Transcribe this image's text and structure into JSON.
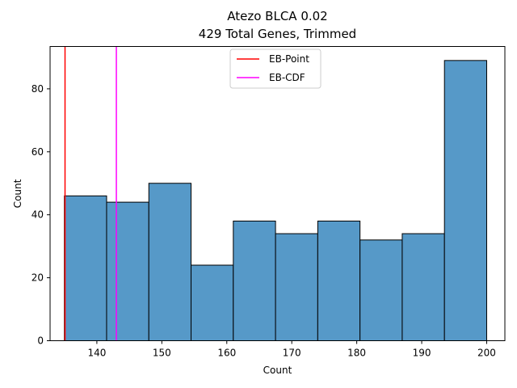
{
  "chart_data": {
    "type": "bar",
    "title": "Atezo BLCA 0.02",
    "subtitle": "429 Total Genes, Trimmed",
    "xlabel": "Count",
    "ylabel": "Count",
    "xlim": [
      132.8,
      202.8
    ],
    "ylim": [
      0,
      93.45
    ],
    "x_ticks": [
      140,
      150,
      160,
      170,
      180,
      190,
      200
    ],
    "y_ticks": [
      0,
      20,
      40,
      60,
      80
    ],
    "bins": [
      {
        "start": 135.0,
        "end": 141.5,
        "count": 46
      },
      {
        "start": 141.5,
        "end": 148.0,
        "count": 44
      },
      {
        "start": 148.0,
        "end": 154.5,
        "count": 50
      },
      {
        "start": 154.5,
        "end": 161.0,
        "count": 24
      },
      {
        "start": 161.0,
        "end": 167.5,
        "count": 38
      },
      {
        "start": 167.5,
        "end": 174.0,
        "count": 34
      },
      {
        "start": 174.0,
        "end": 180.5,
        "count": 38
      },
      {
        "start": 180.5,
        "end": 187.0,
        "count": 32
      },
      {
        "start": 187.0,
        "end": 193.5,
        "count": 34
      },
      {
        "start": 193.5,
        "end": 200.0,
        "count": 89
      }
    ],
    "bar_color": "#5699c8",
    "bar_edge_color": "#000000",
    "vlines": [
      {
        "name": "EB-Point",
        "x": 135.1,
        "color": "#ff0000"
      },
      {
        "name": "EB-CDF",
        "x": 143.0,
        "color": "#ff00ff"
      }
    ],
    "legend_position": "top-center",
    "grid": false
  }
}
